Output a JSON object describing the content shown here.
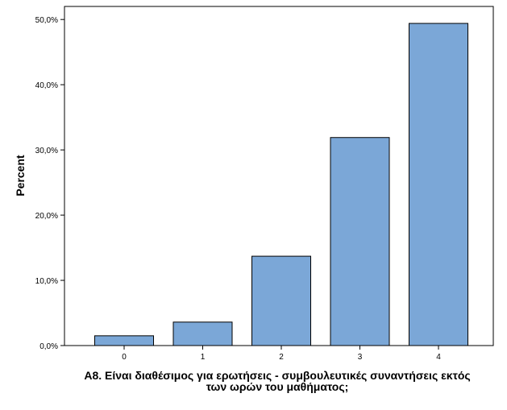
{
  "chart_data": {
    "type": "bar",
    "categories": [
      "0",
      "1",
      "2",
      "3",
      "4"
    ],
    "values": [
      1.5,
      3.6,
      13.7,
      31.9,
      49.4
    ],
    "ylim": [
      0,
      52
    ],
    "yticks": [
      0,
      10,
      20,
      30,
      40,
      50
    ],
    "ytick_labels": [
      "0,0%",
      "10,0%",
      "20,0%",
      "30,0%",
      "40,0%",
      "50,0%"
    ],
    "ylabel": "Percent",
    "xlabel_lines": [
      "A8. Είναι διαθέσιμος για ερωτήσεις - συμβουλευτικές συναντήσεις εκτός",
      "των ωρών του μαθήματος;"
    ],
    "grid": false,
    "legend": "none",
    "bar_color": "#7BA7D7",
    "bar_edge_color": "#000000"
  }
}
